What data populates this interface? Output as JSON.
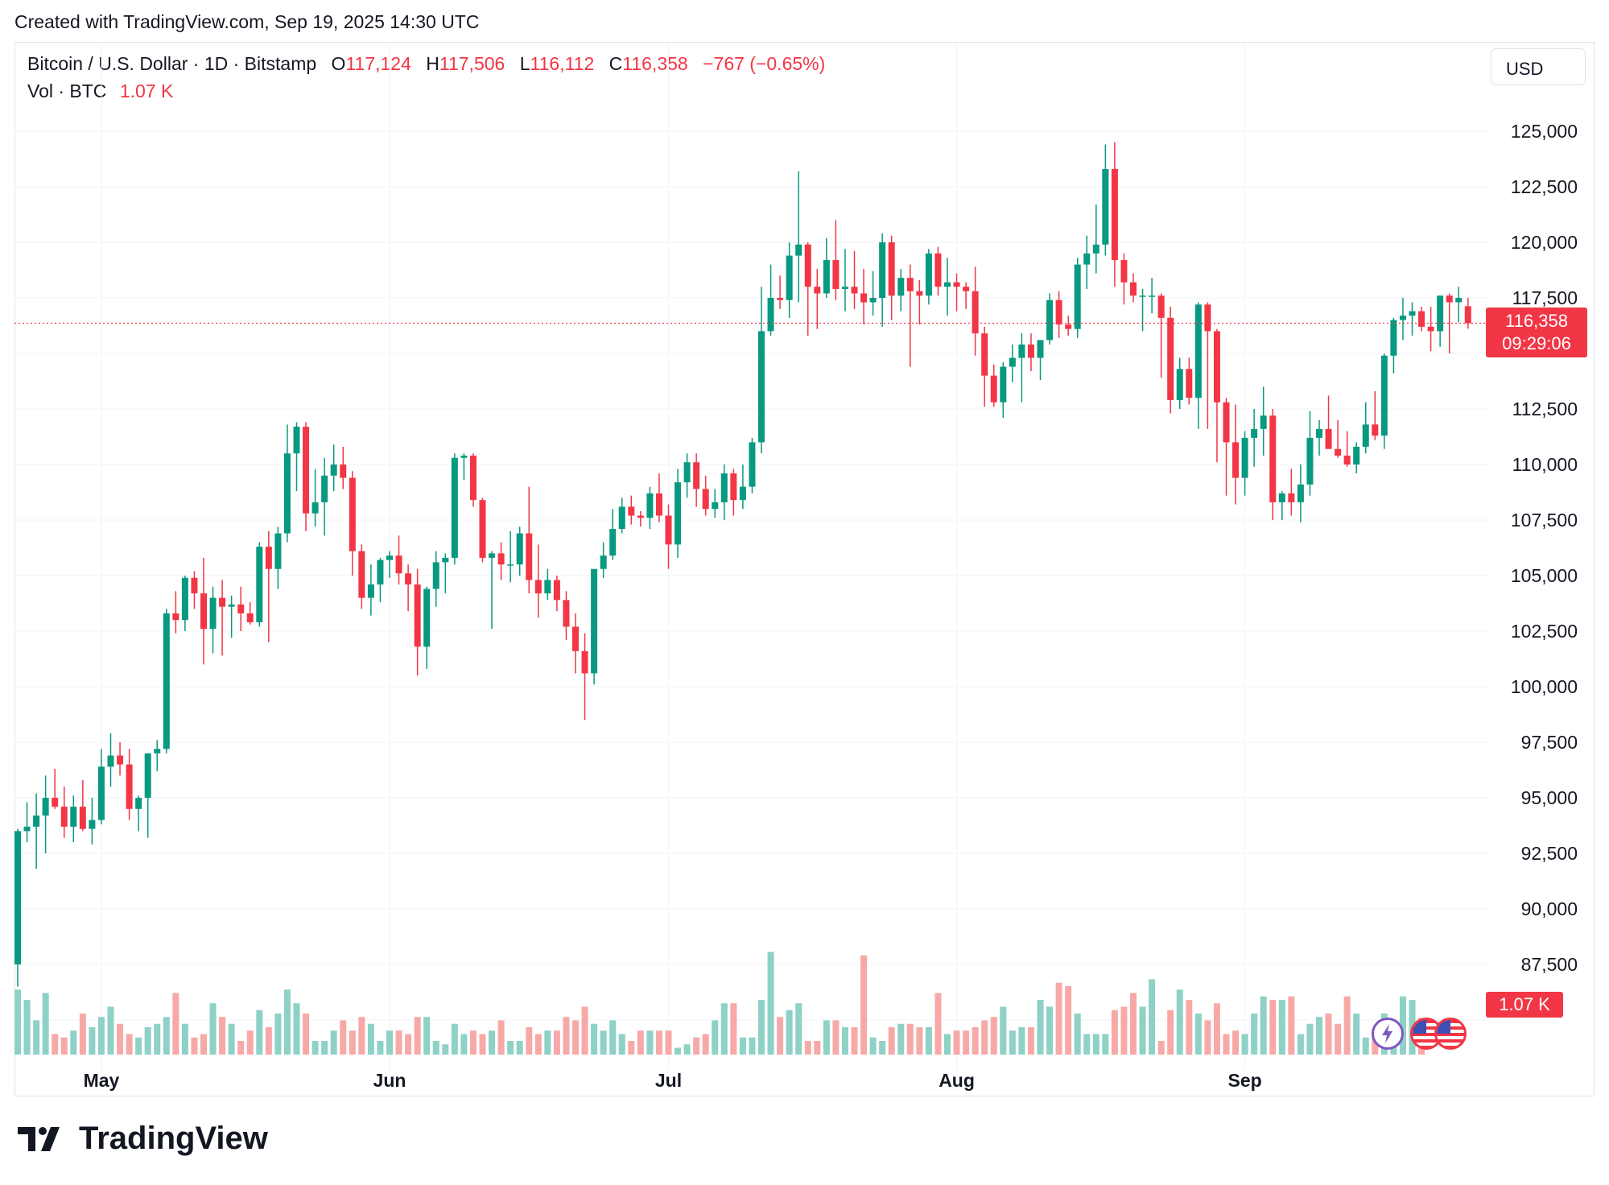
{
  "header": {
    "created": "Created with TradingView.com, Sep 19, 2025 14:30 UTC"
  },
  "legend": {
    "symbol": "Bitcoin / U.S. Dollar · 1D · Bitstamp",
    "open_label": "O",
    "open": "117,124",
    "high_label": "H",
    "high": "117,506",
    "low_label": "L",
    "low": "116,112",
    "close_label": "C",
    "close": "116,358",
    "change": "−767 (−0.65%)",
    "vol_label": "Vol · BTC",
    "vol_value": "1.07 K"
  },
  "currency": "USD",
  "last_price": {
    "price": "116,358",
    "countdown": "09:29:06",
    "volume": "1.07 K"
  },
  "colors": {
    "up": "#089981",
    "down": "#f23645",
    "up_volume": "#8ed1c6",
    "down_volume": "#f7a9a7",
    "grid": "#f0f3fa"
  },
  "branding": "TradingView",
  "chart_data": {
    "type": "candlestick",
    "title": "Bitcoin / U.S. Dollar · 1D · Bitstamp",
    "ylabel": "USD",
    "ylim": [
      84000,
      127000
    ],
    "y_ticks": [
      125000,
      122500,
      120000,
      117500,
      112500,
      110000,
      107500,
      105000,
      102500,
      100000,
      97500,
      95000,
      92500,
      90000,
      87500
    ],
    "y_tick_labels": [
      "125,000",
      "122,500",
      "120,000",
      "117,500",
      "112,500",
      "110,000",
      "107,500",
      "105,000",
      "102,500",
      "100,000",
      "97,500",
      "95,000",
      "92,500",
      "90,000",
      "87,500"
    ],
    "x_month_labels": [
      "May",
      "Jun",
      "Jul",
      "Aug",
      "Sep"
    ],
    "x_month_start_index": [
      9,
      40,
      70,
      101,
      132
    ],
    "grid": true,
    "candles_ohlc": [
      [
        87500,
        93600,
        86500,
        93500
      ],
      [
        93500,
        94800,
        93000,
        93700
      ],
      [
        93700,
        95200,
        91800,
        94200
      ],
      [
        94200,
        96000,
        92500,
        95000
      ],
      [
        95000,
        96300,
        94500,
        94600
      ],
      [
        94600,
        95500,
        93200,
        93700
      ],
      [
        93700,
        95100,
        93000,
        94600
      ],
      [
        94600,
        95800,
        93500,
        93600
      ],
      [
        93600,
        95000,
        92900,
        94000
      ],
      [
        94000,
        97200,
        93800,
        96400
      ],
      [
        96400,
        97900,
        95500,
        96900
      ],
      [
        96900,
        97500,
        96000,
        96500
      ],
      [
        96500,
        97200,
        94000,
        94500
      ],
      [
        94500,
        95100,
        93500,
        95000
      ],
      [
        95000,
        97000,
        93200,
        97000
      ],
      [
        97000,
        97600,
        96200,
        97200
      ],
      [
        97200,
        103500,
        97000,
        103300
      ],
      [
        103300,
        104300,
        102400,
        103000
      ],
      [
        103000,
        105000,
        102500,
        104900
      ],
      [
        104900,
        105200,
        103500,
        104200
      ],
      [
        104200,
        105800,
        101000,
        102600
      ],
      [
        102600,
        104500,
        101500,
        104000
      ],
      [
        104000,
        104800,
        101400,
        103600
      ],
      [
        103600,
        104100,
        102200,
        103700
      ],
      [
        103700,
        104500,
        102500,
        103300
      ],
      [
        103300,
        103800,
        102800,
        102900
      ],
      [
        102900,
        106500,
        102700,
        106300
      ],
      [
        106300,
        107000,
        102000,
        105300
      ],
      [
        105300,
        107200,
        104400,
        106900
      ],
      [
        106900,
        111800,
        106500,
        110500
      ],
      [
        110500,
        111900,
        108800,
        111700
      ],
      [
        111700,
        111900,
        107000,
        107800
      ],
      [
        107800,
        109800,
        107200,
        108300
      ],
      [
        108300,
        110300,
        106800,
        109500
      ],
      [
        109500,
        110900,
        108800,
        110000
      ],
      [
        110000,
        110800,
        108900,
        109400
      ],
      [
        109400,
        109700,
        105000,
        106100
      ],
      [
        106100,
        106400,
        103500,
        104000
      ],
      [
        104000,
        105500,
        103200,
        104600
      ],
      [
        104600,
        105800,
        103800,
        105700
      ],
      [
        105700,
        106100,
        104900,
        105900
      ],
      [
        105900,
        106800,
        104600,
        105100
      ],
      [
        105100,
        105500,
        103400,
        104600
      ],
      [
        104600,
        105300,
        100500,
        101800
      ],
      [
        101800,
        104500,
        100800,
        104400
      ],
      [
        104400,
        106100,
        103600,
        105600
      ],
      [
        105600,
        106000,
        104200,
        105800
      ],
      [
        105800,
        110500,
        105500,
        110300
      ],
      [
        110300,
        110500,
        109300,
        110400
      ],
      [
        110400,
        110500,
        108100,
        108400
      ],
      [
        108400,
        108500,
        105600,
        105800
      ],
      [
        105800,
        106100,
        102600,
        106000
      ],
      [
        106000,
        106500,
        104800,
        105500
      ],
      [
        105500,
        107000,
        104700,
        105500
      ],
      [
        105500,
        107200,
        105000,
        106900
      ],
      [
        106900,
        109000,
        104200,
        104800
      ],
      [
        104800,
        106400,
        103100,
        104200
      ],
      [
        104200,
        105300,
        103900,
        104800
      ],
      [
        104800,
        105000,
        103400,
        103900
      ],
      [
        103900,
        104300,
        102100,
        102700
      ],
      [
        102700,
        103300,
        100600,
        101600
      ],
      [
        101600,
        102400,
        98500,
        100600
      ],
      [
        100600,
        105000,
        100100,
        105300
      ],
      [
        105300,
        106500,
        104900,
        105900
      ],
      [
        105900,
        108000,
        105700,
        107100
      ],
      [
        107100,
        108500,
        106900,
        108100
      ],
      [
        108100,
        108600,
        107300,
        107700
      ],
      [
        107700,
        107900,
        107200,
        107600
      ],
      [
        107600,
        109000,
        107100,
        108700
      ],
      [
        108700,
        109600,
        107400,
        107700
      ],
      [
        107700,
        108200,
        105300,
        106400
      ],
      [
        106400,
        109800,
        105800,
        109200
      ],
      [
        109200,
        110500,
        108500,
        110100
      ],
      [
        110100,
        110500,
        108100,
        108900
      ],
      [
        108900,
        109500,
        107700,
        108000
      ],
      [
        108000,
        108900,
        107600,
        108300
      ],
      [
        108300,
        110000,
        107500,
        109600
      ],
      [
        109600,
        109800,
        107700,
        108400
      ],
      [
        108400,
        110000,
        108000,
        109000
      ],
      [
        109000,
        111200,
        108700,
        111000
      ],
      [
        111000,
        118000,
        110500,
        116000
      ],
      [
        116000,
        119000,
        115800,
        117500
      ],
      [
        117500,
        118500,
        117000,
        117400
      ],
      [
        117400,
        120000,
        116600,
        119400
      ],
      [
        119400,
        123200,
        117300,
        119900
      ],
      [
        119900,
        120000,
        115800,
        118000
      ],
      [
        118000,
        118800,
        116100,
        117700
      ],
      [
        117700,
        120200,
        117500,
        119200
      ],
      [
        119200,
        121000,
        117400,
        117900
      ],
      [
        117900,
        119700,
        116900,
        118000
      ],
      [
        118000,
        119600,
        117000,
        117700
      ],
      [
        117700,
        118800,
        116300,
        117300
      ],
      [
        117300,
        118700,
        116700,
        117500
      ],
      [
        117500,
        120400,
        116200,
        120000
      ],
      [
        120000,
        120300,
        116500,
        117600
      ],
      [
        117600,
        118800,
        116900,
        118400
      ],
      [
        118400,
        119000,
        114400,
        117800
      ],
      [
        117800,
        118300,
        116300,
        117600
      ],
      [
        117600,
        119700,
        117200,
        119500
      ],
      [
        119500,
        119800,
        117600,
        118000
      ],
      [
        118000,
        119300,
        116700,
        118200
      ],
      [
        118200,
        118600,
        116900,
        118000
      ],
      [
        118000,
        118200,
        117000,
        117800
      ],
      [
        117800,
        118900,
        114900,
        115900
      ],
      [
        115900,
        116200,
        112600,
        114000
      ],
      [
        114000,
        114500,
        112600,
        112800
      ],
      [
        112800,
        114600,
        112100,
        114400
      ],
      [
        114400,
        115400,
        113700,
        114800
      ],
      [
        114800,
        115900,
        112800,
        115400
      ],
      [
        115400,
        115900,
        114200,
        114800
      ],
      [
        114800,
        115600,
        113800,
        115600
      ],
      [
        115600,
        117700,
        115400,
        117400
      ],
      [
        117400,
        117800,
        115700,
        116300
      ],
      [
        116300,
        116700,
        115800,
        116100
      ],
      [
        116100,
        119300,
        115700,
        119000
      ],
      [
        119000,
        120300,
        117900,
        119500
      ],
      [
        119500,
        121700,
        118600,
        119900
      ],
      [
        119900,
        124400,
        119400,
        123300
      ],
      [
        123300,
        124500,
        118000,
        119200
      ],
      [
        119200,
        119500,
        117200,
        118200
      ],
      [
        118200,
        118600,
        117300,
        117600
      ],
      [
        117600,
        117900,
        116000,
        117600
      ],
      [
        117600,
        118400,
        116800,
        117600
      ],
      [
        117600,
        117700,
        113900,
        116600
      ],
      [
        116600,
        117100,
        112300,
        112900
      ],
      [
        112900,
        114800,
        112500,
        114300
      ],
      [
        114300,
        114800,
        112700,
        113000
      ],
      [
        113000,
        117300,
        111600,
        117200
      ],
      [
        117200,
        117300,
        111600,
        116000
      ],
      [
        116000,
        116100,
        110100,
        112800
      ],
      [
        112800,
        113000,
        108600,
        111000
      ],
      [
        111000,
        112700,
        108200,
        109400
      ],
      [
        109400,
        111500,
        108600,
        111200
      ],
      [
        111200,
        112500,
        109900,
        111600
      ],
      [
        111600,
        113500,
        110400,
        112200
      ],
      [
        112200,
        112500,
        107500,
        108300
      ],
      [
        108300,
        108800,
        107500,
        108700
      ],
      [
        108700,
        109800,
        107700,
        108300
      ],
      [
        108300,
        110000,
        107400,
        109100
      ],
      [
        109100,
        112400,
        108600,
        111200
      ],
      [
        111200,
        112000,
        110400,
        111600
      ],
      [
        111600,
        113100,
        110800,
        110700
      ],
      [
        110700,
        112000,
        110300,
        110400
      ],
      [
        110400,
        111500,
        109900,
        110000
      ],
      [
        110000,
        111000,
        109600,
        110800
      ],
      [
        110800,
        112800,
        110500,
        111800
      ],
      [
        111800,
        113300,
        111100,
        111300
      ],
      [
        111300,
        115000,
        110700,
        114900
      ],
      [
        114900,
        116600,
        114100,
        116500
      ],
      [
        116500,
        117500,
        115600,
        116700
      ],
      [
        116700,
        117300,
        115800,
        116900
      ],
      [
        116900,
        117100,
        116000,
        116200
      ],
      [
        116200,
        117100,
        115100,
        116000
      ],
      [
        116000,
        117600,
        115300,
        117600
      ],
      [
        117600,
        117700,
        115000,
        117300
      ],
      [
        117300,
        118000,
        116400,
        117500
      ],
      [
        117124,
        117506,
        116112,
        116358
      ]
    ],
    "volume_btc": [
      1.9,
      1.6,
      1.0,
      1.8,
      0.6,
      0.5,
      0.7,
      1.2,
      0.8,
      1.1,
      1.4,
      0.9,
      0.6,
      0.5,
      0.8,
      0.9,
      1.1,
      1.8,
      0.9,
      0.5,
      0.6,
      1.5,
      1.1,
      0.9,
      0.4,
      0.7,
      1.3,
      0.8,
      1.2,
      1.9,
      1.5,
      1.2,
      0.4,
      0.4,
      0.7,
      1.0,
      0.7,
      1.1,
      0.9,
      0.4,
      0.7,
      0.7,
      0.6,
      1.1,
      1.1,
      0.4,
      0.3,
      0.9,
      0.6,
      0.7,
      0.6,
      0.7,
      1.0,
      0.4,
      0.4,
      0.8,
      0.6,
      0.7,
      0.7,
      1.1,
      1.0,
      1.4,
      0.9,
      0.7,
      1.0,
      0.6,
      0.4,
      0.7,
      0.7,
      0.7,
      0.7,
      0.2,
      0.3,
      0.5,
      0.6,
      1.0,
      1.5,
      1.5,
      0.5,
      0.5,
      1.6,
      3.0,
      1.1,
      1.3,
      1.5,
      0.4,
      0.4,
      1.0,
      1.0,
      0.8,
      0.8,
      2.9,
      0.5,
      0.4,
      0.8,
      0.9,
      0.9,
      0.8,
      0.8,
      1.8,
      0.6,
      0.7,
      0.7,
      0.8,
      1.0,
      1.1,
      1.4,
      0.7,
      0.8,
      0.8,
      1.6,
      1.4,
      2.1,
      2.0,
      1.2,
      0.6,
      0.6,
      0.6,
      1.3,
      1.4,
      1.8,
      1.4,
      2.2,
      0.4,
      1.3,
      1.9,
      1.6,
      1.2,
      1.0,
      1.5,
      0.6,
      0.7,
      0.6,
      1.2,
      1.7,
      1.6,
      1.6,
      1.7,
      0.6,
      0.9,
      1.1,
      1.2,
      0.9,
      1.7,
      1.2,
      0.5,
      0.5,
      1.2,
      1.0,
      1.7,
      1.6,
      1.07
    ]
  }
}
